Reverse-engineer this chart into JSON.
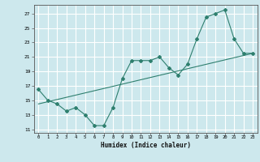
{
  "xlabel": "Humidex (Indice chaleur)",
  "ylabel": "",
  "xlim": [
    -0.5,
    23.5
  ],
  "ylim": [
    10.5,
    28.2
  ],
  "xticks": [
    0,
    1,
    2,
    3,
    4,
    5,
    6,
    7,
    8,
    9,
    10,
    11,
    12,
    13,
    14,
    15,
    16,
    17,
    18,
    19,
    20,
    21,
    22,
    23
  ],
  "yticks": [
    11,
    13,
    15,
    17,
    19,
    21,
    23,
    25,
    27
  ],
  "bg_color": "#cde8ed",
  "grid_color": "#ffffff",
  "line_color": "#2e7f6e",
  "line1_x": [
    0,
    1,
    2,
    3,
    4,
    5,
    6,
    7,
    8,
    9,
    10,
    11,
    12,
    13,
    14,
    15,
    16,
    17,
    18,
    19,
    20,
    21,
    22,
    23
  ],
  "line1_y": [
    16.5,
    15.0,
    14.5,
    13.5,
    14.0,
    13.0,
    11.5,
    11.5,
    14.0,
    18.0,
    20.5,
    20.5,
    20.5,
    21.0,
    19.5,
    18.5,
    20.0,
    23.5,
    26.5,
    27.0,
    27.5,
    23.5,
    21.5,
    21.5
  ],
  "line2_x": [
    0,
    23
  ],
  "line2_y": [
    14.5,
    21.5
  ]
}
